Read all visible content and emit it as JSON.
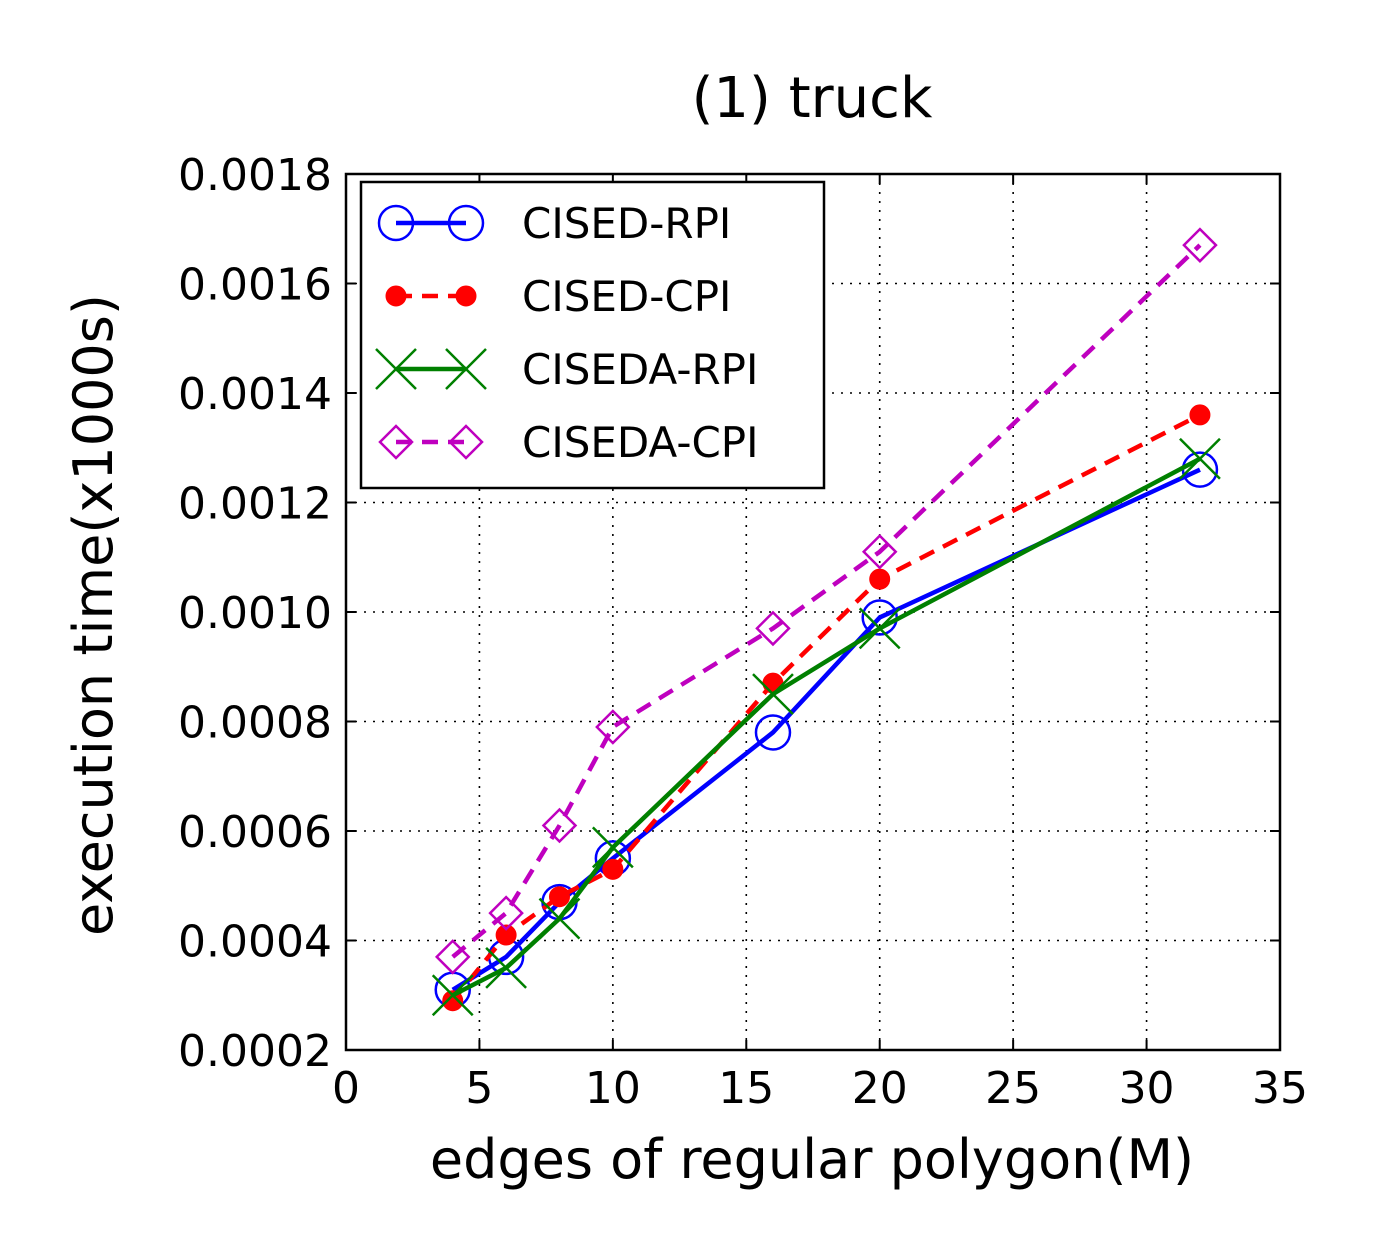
{
  "chart_data": {
    "type": "line",
    "title": "(1) truck",
    "xlabel": "edges of regular polygon(M)",
    "ylabel": "execution time(x1000s)",
    "xlim": [
      0,
      35
    ],
    "ylim": [
      0.0002,
      0.0018
    ],
    "xticks": [
      0,
      5,
      10,
      15,
      20,
      25,
      30,
      35
    ],
    "xtick_labels": [
      "0",
      "5",
      "10",
      "15",
      "20",
      "25",
      "30",
      "35"
    ],
    "yticks": [
      0.0002,
      0.0004,
      0.0006,
      0.0008,
      0.001,
      0.0012,
      0.0014,
      0.0016,
      0.0018
    ],
    "ytick_labels": [
      "0.0002",
      "0.0004",
      "0.0006",
      "0.0008",
      "0.0010",
      "0.0012",
      "0.0014",
      "0.0016",
      "0.0018"
    ],
    "grid": true,
    "legend_position": "top-left",
    "x": [
      4,
      6,
      8,
      10,
      16,
      20,
      32
    ],
    "series": [
      {
        "name": "CISED-RPI",
        "color": "#0000ff",
        "line_style": "solid",
        "marker": "circle-open",
        "values": [
          0.00031,
          0.00037,
          0.00047,
          0.00055,
          0.00078,
          0.00099,
          0.00126
        ]
      },
      {
        "name": "CISED-CPI",
        "color": "#ff0000",
        "line_style": "dashed",
        "marker": "circle-filled",
        "values": [
          0.00029,
          0.00041,
          0.00048,
          0.00053,
          0.00087,
          0.00106,
          0.00136
        ]
      },
      {
        "name": "CISEDA-RPI",
        "color": "#008000",
        "line_style": "solid",
        "marker": "x",
        "values": [
          0.0003,
          0.00035,
          0.00044,
          0.00057,
          0.00085,
          0.00097,
          0.00128
        ]
      },
      {
        "name": "CISEDA-CPI",
        "color": "#bf00bf",
        "line_style": "dashed",
        "marker": "diamond-open",
        "values": [
          0.00037,
          0.00045,
          0.00061,
          0.00079,
          0.00097,
          0.00111,
          0.00167
        ]
      }
    ]
  }
}
